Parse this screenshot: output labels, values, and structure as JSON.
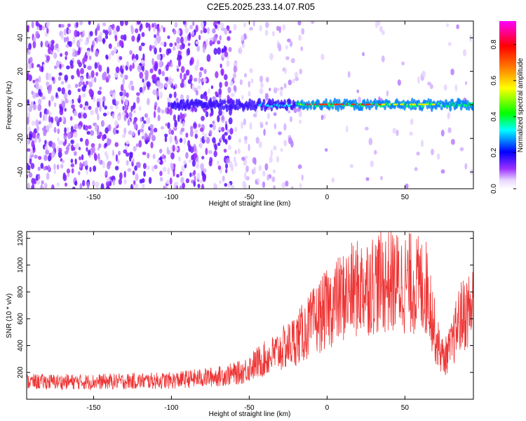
{
  "title": "C2E5.2025.233.14.07.R05",
  "chart_data": [
    {
      "type": "heatmap",
      "xlabel": "Height of straight line (km)",
      "ylabel": "Frequency (Hz)",
      "xlim": [
        -193,
        94
      ],
      "ylim": [
        -50,
        50
      ],
      "xticks": [
        -150,
        -100,
        -50,
        0,
        50
      ],
      "yticks": [
        -40,
        -20,
        0,
        20,
        40
      ],
      "colorbar": {
        "label": "Normalized spectral amplitude",
        "ticks": [
          0.0,
          0.2,
          0.4,
          0.6,
          0.8
        ],
        "range": [
          0,
          0.93
        ],
        "colormap": [
          "#ffffff",
          "#9b30ff",
          "#0000ff",
          "#00ffff",
          "#00ff00",
          "#ffff00",
          "#ff7f00",
          "#ff0000",
          "#ff00ff"
        ]
      },
      "description_values": {
        "noise_region_x": [
          -193,
          -50
        ],
        "signal_band_center_hz": 0,
        "signal_band_start_x": -100,
        "peak_amplitude_region_x": [
          -20,
          35
        ]
      }
    },
    {
      "type": "line",
      "xlabel": "Height of straight line (km)",
      "ylabel": "SNR (10 * v/v)",
      "xlim": [
        -193,
        94
      ],
      "ylim": [
        0,
        1250
      ],
      "xticks": [
        -150,
        -100,
        -50,
        0,
        50
      ],
      "yticks": [
        200,
        400,
        600,
        800,
        1000,
        1200
      ],
      "color": "#ee3333",
      "trend": {
        "x": [
          -193,
          -150,
          -100,
          -70,
          -55,
          -45,
          -35,
          -25,
          -15,
          -5,
          5,
          15,
          25,
          35,
          45,
          55,
          65,
          70,
          75,
          80,
          85,
          94
        ],
        "y": [
          130,
          130,
          140,
          170,
          200,
          270,
          330,
          400,
          500,
          620,
          720,
          800,
          850,
          880,
          870,
          860,
          820,
          450,
          300,
          400,
          600,
          700
        ]
      }
    }
  ]
}
